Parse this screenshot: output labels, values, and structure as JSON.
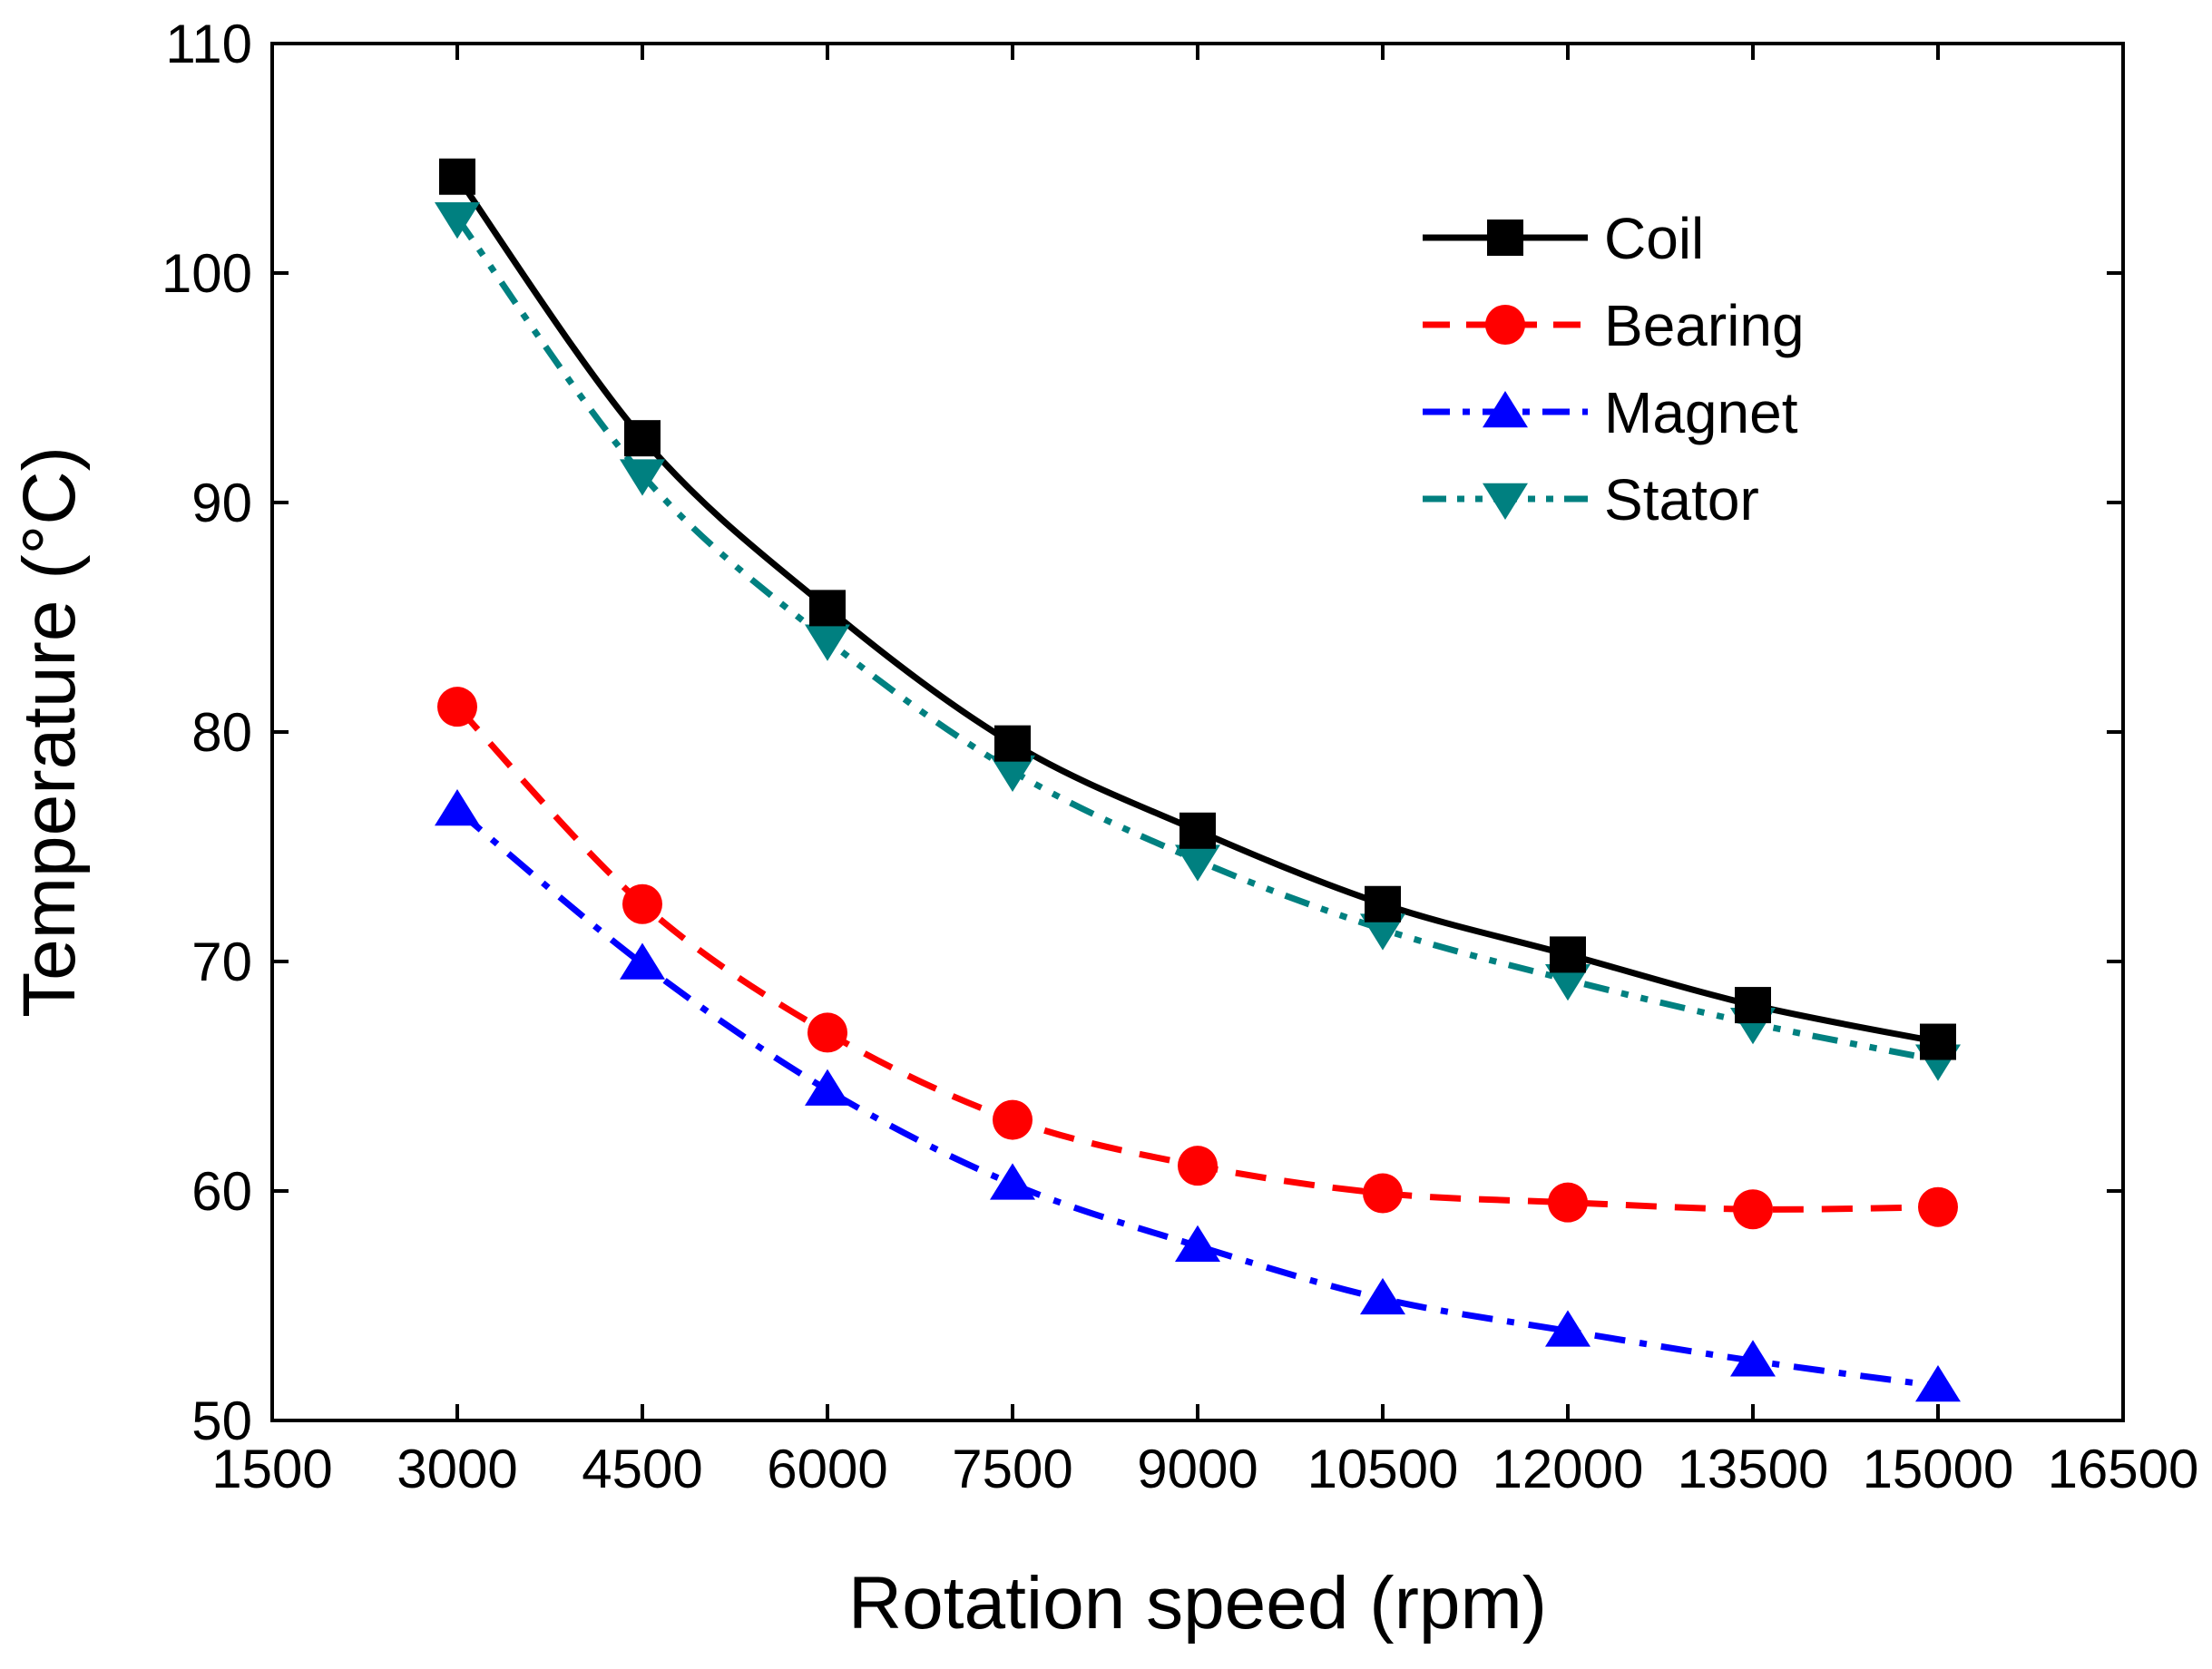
{
  "chart_data": {
    "type": "line",
    "title": "",
    "xlabel": "Rotation speed (rpm)",
    "ylabel": "Temperature (°C)",
    "xlim": [
      1500,
      16500
    ],
    "ylim": [
      50,
      110
    ],
    "xticks": [
      1500,
      3000,
      4500,
      6000,
      7500,
      9000,
      10500,
      12000,
      13500,
      15000,
      16500
    ],
    "yticks": [
      50,
      60,
      70,
      80,
      90,
      100,
      110
    ],
    "xtick_labels": [
      "1500",
      "3000",
      "4500",
      "6000",
      "7500",
      "9000",
      "10500",
      "12000",
      "13500",
      "15000",
      "16500"
    ],
    "ytick_labels": [
      "50",
      "60",
      "70",
      "80",
      "90",
      "100",
      "110"
    ],
    "grid": false,
    "legend_position": "top-right",
    "x": [
      3000,
      4500,
      6000,
      7500,
      9000,
      10500,
      12000,
      13500,
      15000
    ],
    "series": [
      {
        "name": "Coil",
        "values": [
          104.2,
          92.8,
          85.4,
          79.5,
          75.7,
          72.5,
          70.3,
          68.1,
          66.5
        ],
        "color": "#000000",
        "marker": "square",
        "line_style": "solid"
      },
      {
        "name": "Bearing",
        "values": [
          81.1,
          72.5,
          66.9,
          63.1,
          61.1,
          59.9,
          59.5,
          59.2,
          59.3
        ],
        "color": "#ff0000",
        "marker": "circle",
        "line_style": "dash"
      },
      {
        "name": "Magnet",
        "values": [
          76.6,
          69.9,
          64.4,
          60.3,
          57.6,
          55.3,
          53.9,
          52.6,
          51.5
        ],
        "color": "#0000ff",
        "marker": "triangle-up",
        "line_style": "dash-dot"
      },
      {
        "name": "Stator",
        "values": [
          102.4,
          91.2,
          84.0,
          78.3,
          74.4,
          71.4,
          69.2,
          67.3,
          65.7
        ],
        "color": "#008080",
        "marker": "triangle-down",
        "line_style": "dash-dot-dot"
      }
    ]
  }
}
